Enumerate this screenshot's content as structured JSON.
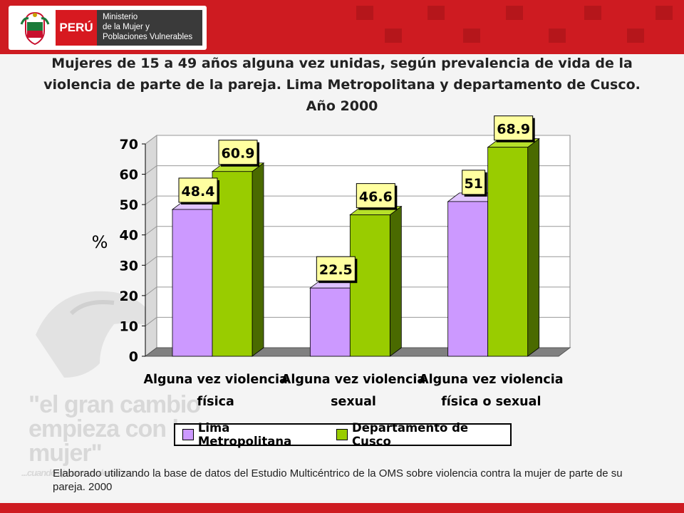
{
  "header": {
    "country": "PERÚ",
    "ministry_lines": [
      "Ministerio",
      "de la Mujer y",
      "Poblaciones Vulnerables"
    ],
    "bar_color": "#ce1b21"
  },
  "watermark": {
    "lines": [
      "\"el gran cambio",
      "empieza con la",
      "mujer\""
    ],
    "tagline": "...cuando ejerce sus derechos ..."
  },
  "chart_data": {
    "type": "bar",
    "title": "Mujeres de 15 a 49 años alguna vez unidas, según prevalencia de vida de la violencia de parte de la pareja. Lima Metropolitana y departamento de Cusco. Año 2000",
    "ylabel": "%",
    "xlabel": "",
    "ylim": [
      0,
      70
    ],
    "yticks": [
      "0",
      "10",
      "20",
      "30",
      "40",
      "50",
      "60",
      "70"
    ],
    "categories": [
      [
        "Alguna vez violencia",
        "física"
      ],
      [
        "Alguna vez violencia",
        "sexual"
      ],
      [
        "Alguna vez violencia",
        "física o sexual"
      ]
    ],
    "series": [
      {
        "name": "Lima Metropolitana",
        "values": [
          48.4,
          22.5,
          51
        ],
        "labels": [
          "48.4",
          "22.5",
          "51"
        ],
        "color": "#cc99ff",
        "side_color": "#7a4fb0",
        "top_color": "#e0c4ff"
      },
      {
        "name": "Departamento de Cusco",
        "values": [
          60.9,
          46.6,
          68.9
        ],
        "labels": [
          "60.9",
          "46.6",
          "68.9"
        ],
        "color": "#99cc00",
        "side_color": "#4a6a00",
        "top_color": "#b6e02a"
      }
    ],
    "grid": true,
    "legend_position": "bottom"
  },
  "source": "Elaborado utilizando la base de datos del Estudio Multicéntrico de la OMS sobre violencia contra la mujer de parte de su pareja. 2000"
}
